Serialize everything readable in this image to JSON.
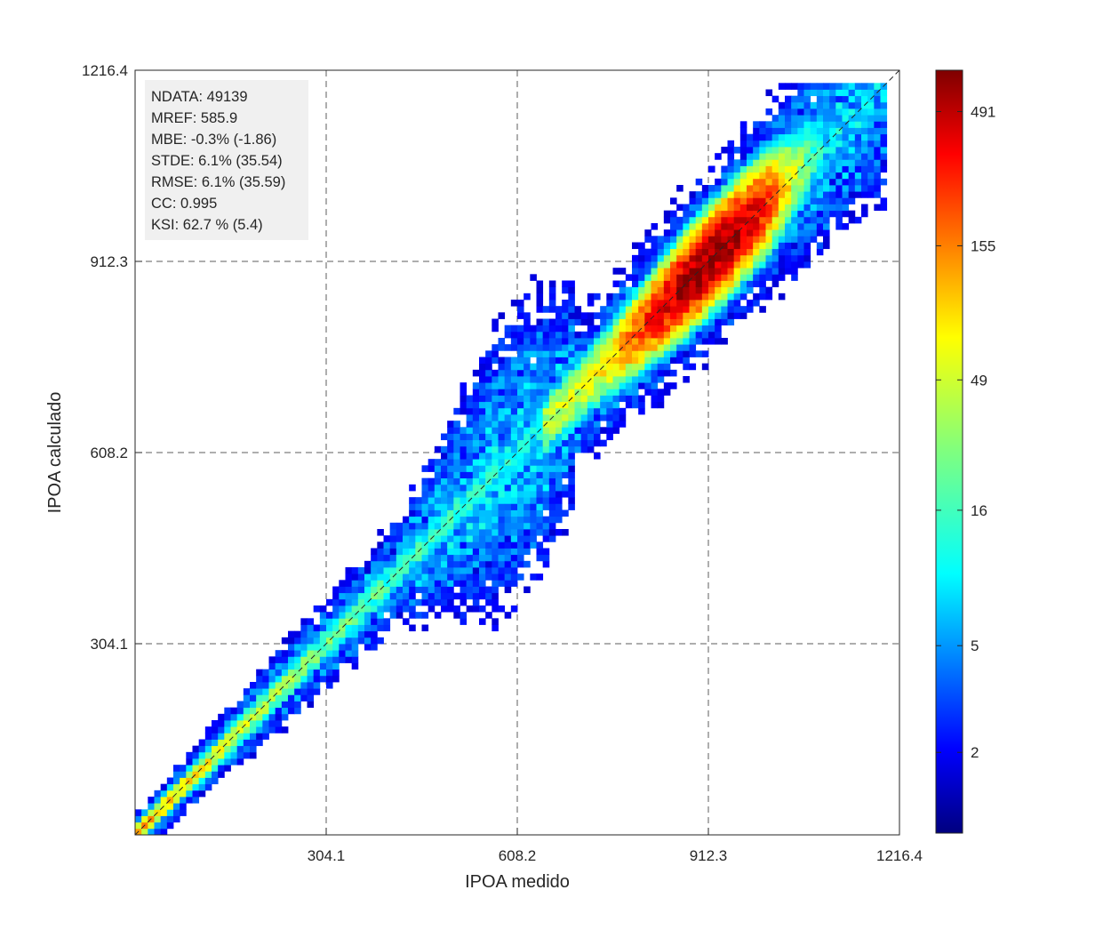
{
  "chart_data": {
    "type": "heatmap",
    "subtype": "density-scatter",
    "xlabel": "IPOA medido",
    "ylabel": "IPOA calculado",
    "xlim": [
      0,
      1216.4
    ],
    "ylim": [
      0,
      1216.4
    ],
    "x_ticks": [
      "304.1",
      "608.2",
      "912.3",
      "1216.4"
    ],
    "y_ticks": [
      "304.1",
      "608.2",
      "912.3",
      "1216.4"
    ],
    "x_tick_values": [
      304.1,
      608.2,
      912.3,
      1216.4
    ],
    "y_tick_values": [
      304.1,
      608.2,
      912.3,
      1216.4
    ],
    "grid": true,
    "grid_style": "dashed",
    "reference_line": "y = x (dashed)",
    "stats": [
      "NDATA: 49139",
      "MREF: 585.9",
      "MBE: -0.3% (-1.86)",
      "STDE: 6.1% (35.54)",
      "RMSE: 6.1% (35.59)",
      "CC: 0.995",
      "KSI: 62.7 % (5.4)"
    ],
    "colorbar": {
      "colormap": "jet",
      "scale": "log",
      "range": [
        1,
        700
      ],
      "ticks": [
        "2",
        "5",
        "16",
        "49",
        "155",
        "491"
      ],
      "tick_values": [
        2,
        5,
        16,
        49,
        155,
        491
      ]
    }
  },
  "colors": {
    "background": "#ffffff",
    "axes": "#262626",
    "grid": "#262626",
    "stats_box": "#f0f0f0"
  }
}
